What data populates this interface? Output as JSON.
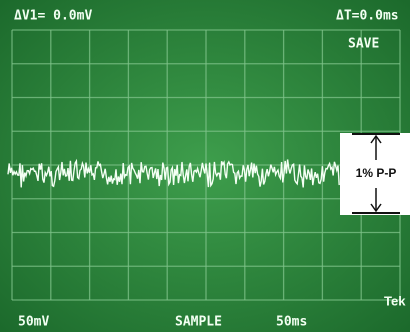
{
  "readout": {
    "delta_v": "ΔV1= 0.0mV",
    "delta_t": "ΔT=0.0ms",
    "mode": "SAVE"
  },
  "annotation": {
    "label": "1% P-P"
  },
  "footer": {
    "volts_per_div": "50mV",
    "acquisition": "SAMPLE",
    "time_per_div": "50ms",
    "brand": "Tek"
  }
}
